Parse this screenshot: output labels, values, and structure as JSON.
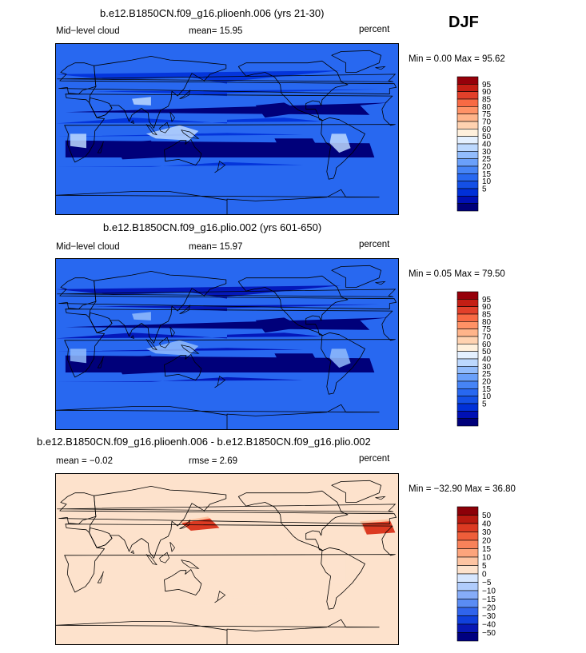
{
  "season": "DJF",
  "colors": {
    "seq": [
      "#00007a",
      "#0010b4",
      "#0030d8",
      "#1450e6",
      "#2868f0",
      "#4684f6",
      "#6aa0fa",
      "#92bcfc",
      "#bcd8fe",
      "#e4f0ff",
      "#fff0dc",
      "#ffd2b0",
      "#ffb48a",
      "#ff9266",
      "#f86a44",
      "#e2402a",
      "#c41e14",
      "#96000a"
    ],
    "diff": [
      "#000080",
      "#0818b4",
      "#1040dc",
      "#3064ec",
      "#5a8cf4",
      "#86acf8",
      "#b0ccfc",
      "#d6e6fe",
      "#fde2cc",
      "#fdc4a2",
      "#fca47c",
      "#f8825a",
      "#ee5e3a",
      "#dc3a22",
      "#b81a10",
      "#8c0008"
    ]
  },
  "chart_data": [
    {
      "type": "heatmap",
      "title": "b.e12.B1850CN.f09_g16.plioenh.006 (yrs 21-30)",
      "left_label": "Mid−level cloud",
      "center_label": "mean=  15.95",
      "mean": 15.95,
      "units": "percent",
      "stats": "Min =    0.00 Max =   95.62",
      "min": 0.0,
      "max": 95.62,
      "levels": [
        "95",
        "90",
        "85",
        "80",
        "75",
        "70",
        "60",
        "50",
        "40",
        "30",
        "25",
        "20",
        "15",
        "10",
        "5"
      ],
      "baseline_index": 4
    },
    {
      "type": "heatmap",
      "title": "b.e12.B1850CN.f09_g16.plio.002 (yrs 601-650)",
      "left_label": "Mid−level cloud",
      "center_label": "mean=  15.97",
      "mean": 15.97,
      "units": "percent",
      "stats": "Min =    0.05 Max =   79.50",
      "min": 0.05,
      "max": 79.5,
      "levels": [
        "95",
        "90",
        "85",
        "80",
        "75",
        "70",
        "60",
        "50",
        "40",
        "30",
        "25",
        "20",
        "15",
        "10",
        "5"
      ],
      "baseline_index": 4
    },
    {
      "type": "heatmap",
      "title": "b.e12.B1850CN.f09_g16.plioenh.006 - b.e12.B1850CN.f09_g16.plio.002",
      "left_label": "mean =  −0.02",
      "center_label": "rmse =   2.69",
      "mean": -0.02,
      "rmse": 2.69,
      "units": "percent",
      "stats": "Min = −32.90 Max =   36.80",
      "min": -32.9,
      "max": 36.8,
      "levels": [
        "50",
        "40",
        "30",
        "20",
        "15",
        "10",
        "5",
        "0",
        "−5",
        "−10",
        "−15",
        "−20",
        "−30",
        "−40",
        "−50"
      ],
      "baseline_index": 8
    }
  ]
}
